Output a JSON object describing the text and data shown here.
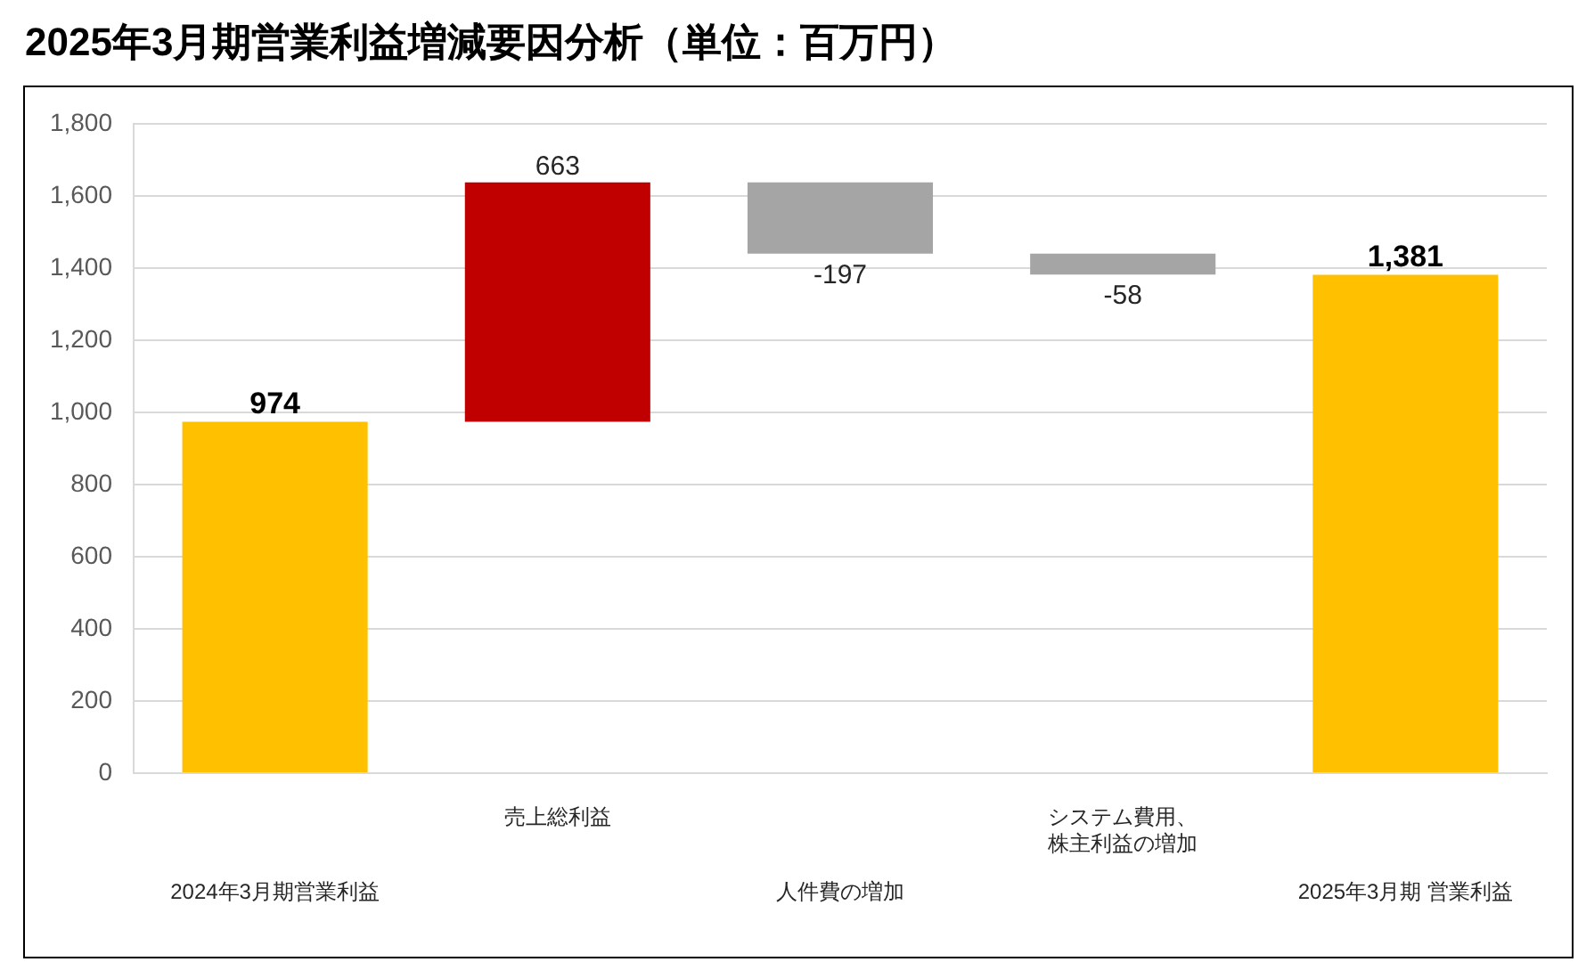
{
  "chart_data": {
    "type": "bar",
    "title": "2025年3月期営業利益増減要因分析（単位：百万円）",
    "categories": [
      "2024年3月期営業利益",
      "売上総利益",
      "人件費の増加",
      "システム費用、株主利益の増加",
      "2025年3月期 営業利益"
    ],
    "values": [
      974,
      663,
      -197,
      -58,
      1381
    ],
    "base": [
      0,
      974,
      1637,
      1440,
      0
    ],
    "colors": [
      "#ffc000",
      "#c00000",
      "#a5a5a5",
      "#a5a5a5",
      "#ffc000"
    ],
    "value_labels": [
      "974",
      "663",
      "-197",
      "-58",
      "1,381"
    ],
    "ylim": [
      0,
      1800
    ],
    "yticks": [
      0,
      200,
      400,
      600,
      800,
      {
        "value": 1000,
        "label": "1,000"
      },
      {
        "value": 1200,
        "label": "1,200"
      },
      {
        "value": 1400,
        "label": "1,400"
      },
      {
        "value": 1600,
        "label": "1,600"
      },
      {
        "value": 1800,
        "label": "1,800"
      }
    ],
    "grid": "y"
  }
}
